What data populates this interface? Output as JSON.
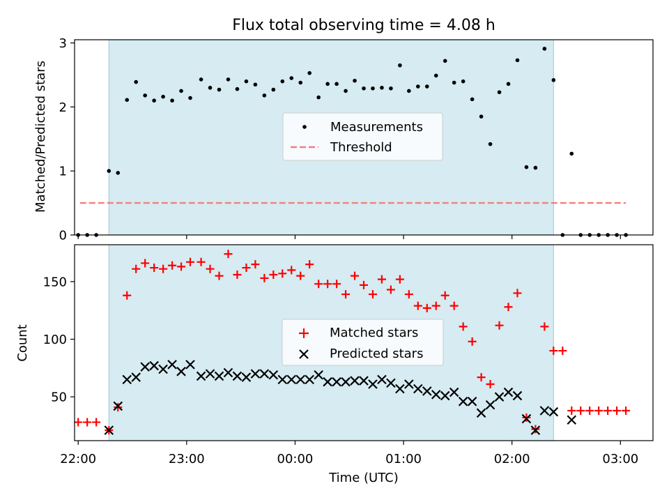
{
  "chart_data": [
    {
      "type": "scatter",
      "title": "Flux total observing time = 4.08 h",
      "ylabel": "Matched/Predicted stars",
      "xlabel": "",
      "xlim": [
        "21:58",
        "03:18"
      ],
      "ylim": [
        0,
        3.05
      ],
      "yticks": [
        0,
        1,
        2,
        3
      ],
      "shaded_span": [
        "22:17",
        "02:23"
      ],
      "legend": "center",
      "series": [
        {
          "name": "Measurements",
          "marker": "dot",
          "color": "#000000",
          "points": [
            [
              "22:00",
              0
            ],
            [
              "22:05",
              0
            ],
            [
              "22:10",
              0
            ],
            [
              "22:17",
              1.0
            ],
            [
              "22:22",
              0.97
            ],
            [
              "22:27",
              2.11
            ],
            [
              "22:32",
              2.39
            ],
            [
              "22:37",
              2.18
            ],
            [
              "22:42",
              2.1
            ],
            [
              "22:47",
              2.16
            ],
            [
              "22:52",
              2.1
            ],
            [
              "22:57",
              2.25
            ],
            [
              "23:02",
              2.14
            ],
            [
              "23:08",
              2.43
            ],
            [
              "23:13",
              2.3
            ],
            [
              "23:18",
              2.27
            ],
            [
              "23:23",
              2.43
            ],
            [
              "23:28",
              2.28
            ],
            [
              "23:33",
              2.4
            ],
            [
              "23:38",
              2.35
            ],
            [
              "23:43",
              2.18
            ],
            [
              "23:48",
              2.27
            ],
            [
              "23:53",
              2.4
            ],
            [
              "23:58",
              2.45
            ],
            [
              "00:03",
              2.38
            ],
            [
              "00:08",
              2.53
            ],
            [
              "00:13",
              2.15
            ],
            [
              "00:18",
              2.36
            ],
            [
              "00:23",
              2.36
            ],
            [
              "00:28",
              2.25
            ],
            [
              "00:33",
              2.41
            ],
            [
              "00:38",
              2.29
            ],
            [
              "00:43",
              2.29
            ],
            [
              "00:48",
              2.3
            ],
            [
              "00:53",
              2.29
            ],
            [
              "00:58",
              2.65
            ],
            [
              "01:03",
              2.25
            ],
            [
              "01:08",
              2.32
            ],
            [
              "01:13",
              2.32
            ],
            [
              "01:18",
              2.49
            ],
            [
              "01:23",
              2.72
            ],
            [
              "01:28",
              2.38
            ],
            [
              "01:33",
              2.4
            ],
            [
              "01:38",
              2.12
            ],
            [
              "01:43",
              1.85
            ],
            [
              "01:48",
              1.42
            ],
            [
              "01:53",
              2.23
            ],
            [
              "01:58",
              2.36
            ],
            [
              "02:03",
              2.73
            ],
            [
              "02:08",
              1.06
            ],
            [
              "02:13",
              1.05
            ],
            [
              "02:18",
              2.91
            ],
            [
              "02:23",
              2.42
            ],
            [
              "02:28",
              0
            ],
            [
              "02:33",
              1.27
            ],
            [
              "02:38",
              0
            ],
            [
              "02:43",
              0
            ],
            [
              "02:48",
              0
            ],
            [
              "02:53",
              0
            ],
            [
              "02:58",
              0
            ],
            [
              "03:03",
              0
            ]
          ]
        },
        {
          "name": "Threshold",
          "marker": "dashed-line",
          "color": "#f08080",
          "points": [
            [
              "22:01",
              0.5
            ],
            [
              "03:03",
              0.5
            ]
          ]
        }
      ]
    },
    {
      "type": "scatter",
      "title": "",
      "xlabel": "Time (UTC)",
      "ylabel": "Count",
      "xlim": [
        "21:58",
        "03:18"
      ],
      "ylim": [
        12,
        182
      ],
      "yticks": [
        50,
        100,
        150
      ],
      "xticks": [
        "22:00",
        "23:00",
        "00:00",
        "01:00",
        "02:00",
        "03:00"
      ],
      "shaded_span": [
        "22:17",
        "02:23"
      ],
      "legend": "center",
      "series": [
        {
          "name": "Matched stars",
          "marker": "plus",
          "color": "#ff0000",
          "points": [
            [
              "22:00",
              28
            ],
            [
              "22:05",
              28
            ],
            [
              "22:10",
              28
            ],
            [
              "22:17",
              21
            ],
            [
              "22:22",
              41
            ],
            [
              "22:27",
              138
            ],
            [
              "22:32",
              161
            ],
            [
              "22:37",
              166
            ],
            [
              "22:42",
              162
            ],
            [
              "22:47",
              161
            ],
            [
              "22:52",
              164
            ],
            [
              "22:57",
              163
            ],
            [
              "23:02",
              167
            ],
            [
              "23:08",
              167
            ],
            [
              "23:13",
              161
            ],
            [
              "23:18",
              155
            ],
            [
              "23:23",
              174
            ],
            [
              "23:28",
              156
            ],
            [
              "23:33",
              162
            ],
            [
              "23:38",
              165
            ],
            [
              "23:43",
              153
            ],
            [
              "23:48",
              156
            ],
            [
              "23:53",
              157
            ],
            [
              "23:58",
              160
            ],
            [
              "00:03",
              155
            ],
            [
              "00:08",
              165
            ],
            [
              "00:13",
              148
            ],
            [
              "00:18",
              148
            ],
            [
              "00:23",
              148
            ],
            [
              "00:28",
              139
            ],
            [
              "00:33",
              155
            ],
            [
              "00:38",
              147
            ],
            [
              "00:43",
              139
            ],
            [
              "00:48",
              152
            ],
            [
              "00:53",
              143
            ],
            [
              "00:58",
              152
            ],
            [
              "01:03",
              139
            ],
            [
              "01:08",
              129
            ],
            [
              "01:13",
              127
            ],
            [
              "01:18",
              129
            ],
            [
              "01:23",
              138
            ],
            [
              "01:28",
              129
            ],
            [
              "01:33",
              111
            ],
            [
              "01:38",
              98
            ],
            [
              "01:43",
              67
            ],
            [
              "01:48",
              61
            ],
            [
              "01:53",
              112
            ],
            [
              "01:58",
              128
            ],
            [
              "02:03",
              140
            ],
            [
              "02:08",
              32
            ],
            [
              "02:13",
              22
            ],
            [
              "02:18",
              111
            ],
            [
              "02:23",
              90
            ],
            [
              "02:28",
              90
            ],
            [
              "02:33",
              38
            ],
            [
              "02:38",
              38
            ],
            [
              "02:43",
              38
            ],
            [
              "02:48",
              38
            ],
            [
              "02:53",
              38
            ],
            [
              "02:58",
              38
            ],
            [
              "03:03",
              38
            ]
          ]
        },
        {
          "name": "Predicted stars",
          "marker": "x",
          "color": "#000000",
          "points": [
            [
              "22:17",
              21
            ],
            [
              "22:22",
              42
            ],
            [
              "22:27",
              65
            ],
            [
              "22:32",
              67
            ],
            [
              "22:37",
              76
            ],
            [
              "22:42",
              77
            ],
            [
              "22:47",
              74
            ],
            [
              "22:52",
              78
            ],
            [
              "22:57",
              72
            ],
            [
              "23:02",
              78
            ],
            [
              "23:08",
              68
            ],
            [
              "23:13",
              70
            ],
            [
              "23:18",
              68
            ],
            [
              "23:23",
              71
            ],
            [
              "23:28",
              68
            ],
            [
              "23:33",
              67
            ],
            [
              "23:38",
              70
            ],
            [
              "23:43",
              70
            ],
            [
              "23:48",
              69
            ],
            [
              "23:53",
              65
            ],
            [
              "23:58",
              65
            ],
            [
              "00:03",
              65
            ],
            [
              "00:08",
              65
            ],
            [
              "00:13",
              69
            ],
            [
              "00:18",
              63
            ],
            [
              "00:23",
              63
            ],
            [
              "00:28",
              63
            ],
            [
              "00:33",
              64
            ],
            [
              "00:38",
              64
            ],
            [
              "00:43",
              61
            ],
            [
              "00:48",
              65
            ],
            [
              "00:53",
              62
            ],
            [
              "00:58",
              57
            ],
            [
              "01:03",
              61
            ],
            [
              "01:08",
              57
            ],
            [
              "01:13",
              55
            ],
            [
              "01:18",
              52
            ],
            [
              "01:23",
              51
            ],
            [
              "01:28",
              54
            ],
            [
              "01:33",
              46
            ],
            [
              "01:38",
              46
            ],
            [
              "01:43",
              36
            ],
            [
              "01:48",
              43
            ],
            [
              "01:53",
              50
            ],
            [
              "01:58",
              54
            ],
            [
              "02:03",
              51
            ],
            [
              "02:08",
              31
            ],
            [
              "02:13",
              21
            ],
            [
              "02:18",
              38
            ],
            [
              "02:23",
              37
            ],
            [
              "02:33",
              30
            ]
          ]
        }
      ]
    }
  ],
  "colors": {
    "shade": "#add8e6",
    "matched": "#ff0000",
    "predicted": "#000000",
    "threshold": "#f08080"
  }
}
